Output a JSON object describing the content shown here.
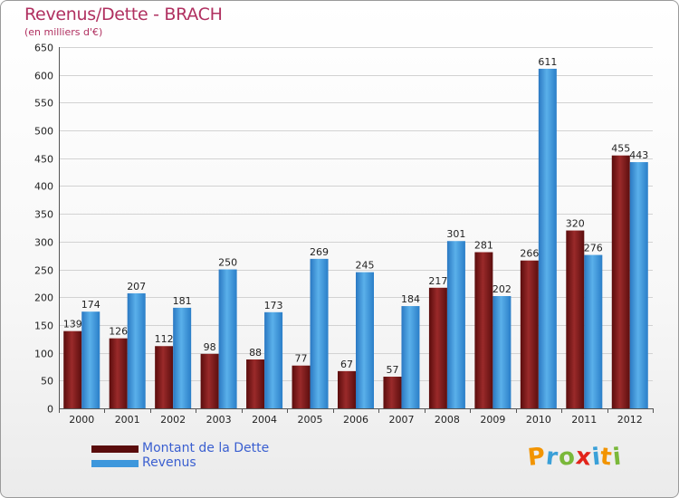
{
  "chart_data": {
    "type": "bar",
    "title": "Revenus/Dette - BRACH",
    "subtitle": "(en milliers d'€)",
    "categories": [
      "2000",
      "2001",
      "2002",
      "2003",
      "2004",
      "2005",
      "2006",
      "2007",
      "2008",
      "2009",
      "2010",
      "2011",
      "2012"
    ],
    "series": [
      {
        "name": "Montant de la Dette",
        "color": "#7a1616",
        "values": [
          139,
          126,
          112,
          98,
          88,
          77,
          67,
          57,
          217,
          281,
          266,
          320,
          455
        ]
      },
      {
        "name": "Revenus",
        "color": "#3d97dc",
        "values": [
          174,
          207,
          181,
          250,
          173,
          269,
          245,
          184,
          301,
          202,
          611,
          276,
          443
        ]
      }
    ],
    "ylim": [
      0,
      650
    ],
    "ytick_step": 50,
    "grid": true,
    "legend_position": "bottom-left"
  },
  "logo": {
    "letters": [
      "P",
      "r",
      "o",
      "x",
      "i",
      "t",
      "i"
    ],
    "colors": [
      "#f29400",
      "#3aa0d8",
      "#7ab83a",
      "#e2231a",
      "#3aa0d8",
      "#f29400",
      "#7ab83a"
    ]
  }
}
